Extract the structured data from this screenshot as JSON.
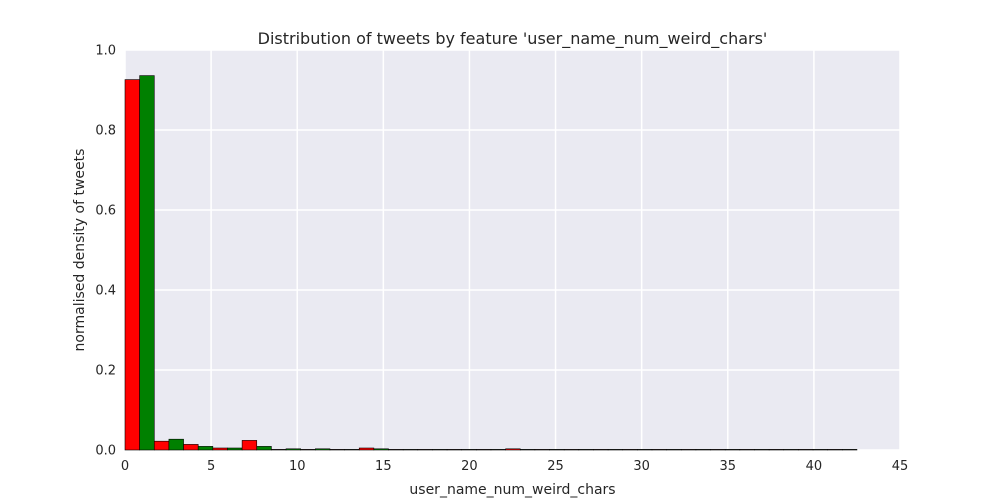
{
  "chart_data": {
    "type": "bar",
    "title": "Distribution of tweets by feature 'user_name_num_weird_chars'",
    "xlabel": "user_name_num_weird_chars",
    "ylabel": "normalised density of tweets",
    "xlim": [
      0,
      45
    ],
    "ylim": [
      0,
      1.0
    ],
    "xticks": [
      0,
      5,
      10,
      15,
      20,
      25,
      30,
      35,
      40,
      45
    ],
    "yticks": [
      0.0,
      0.2,
      0.4,
      0.6,
      0.8,
      1.0
    ],
    "xtick_labels": [
      "0",
      "5",
      "10",
      "15",
      "20",
      "25",
      "30",
      "35",
      "40",
      "45"
    ],
    "ytick_labels": [
      "0.0",
      "0.2",
      "0.4",
      "0.6",
      "0.8",
      "1.0"
    ],
    "grid": true,
    "bin_edges": [
      0,
      1.7,
      3.4,
      5.1,
      6.8,
      8.5,
      10.2,
      11.9,
      13.6,
      15.3,
      17.0,
      18.7,
      20.4,
      22.1,
      23.8,
      25.5,
      27.2,
      28.9,
      30.6,
      32.3,
      34.0,
      35.7,
      37.4,
      39.1,
      40.8,
      42.5
    ],
    "series": [
      {
        "color": "#ff0000",
        "values": [
          0.926,
          0.022,
          0.014,
          0.005,
          0.024,
          0.001,
          0.001,
          0.001,
          0.005,
          0.001,
          0.001,
          0.001,
          0.001,
          0.003,
          0.001,
          0.001,
          0.001,
          0.001,
          0.001,
          0.001,
          0.001,
          0.001,
          0.001,
          0.001,
          0.001
        ]
      },
      {
        "color": "#008000",
        "values": [
          0.936,
          0.027,
          0.009,
          0.005,
          0.009,
          0.003,
          0.003,
          0.001,
          0.003,
          0.001,
          0.001,
          0.001,
          0.001,
          0.001,
          0.001,
          0.001,
          0.001,
          0.001,
          0.001,
          0.001,
          0.001,
          0.001,
          0.001,
          0.001,
          0.001
        ]
      }
    ],
    "colors": {
      "plot_background": "#eaeaf2",
      "grid": "#ffffff",
      "text": "#262626"
    }
  }
}
